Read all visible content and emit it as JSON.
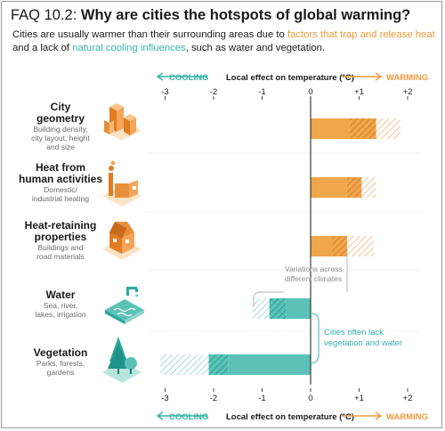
{
  "header": {
    "faq_label": "FAQ 10.2:",
    "question": "Why are cities the hotspots of global warming?",
    "line1_start": "Cities are usually warmer than their surrounding areas due to ",
    "line1_highlight": "factors that trap and release heat",
    "line2_start": "and a lack of ",
    "line2_highlight": "natural cooling influences",
    "line2_end": ", such as water and vegetation."
  },
  "colors": {
    "warming_solid": "#f0a64a",
    "warming_hatch": "#e08a2c",
    "cooling_solid": "#5cc2b8",
    "cooling_hatch": "#2aa89c",
    "axis_line": "#1a1a1a",
    "guide_line": "#b8b8b8"
  },
  "chart_data": {
    "type": "bar",
    "orientation": "horizontal",
    "xlabel": "Local effect on temperature (ºC)",
    "direction_left": "COOLING",
    "direction_right": "WARMING",
    "xlim": [
      -3,
      2
    ],
    "x_ticks": [
      "-3",
      "-2",
      "-1",
      "0",
      "+1",
      "+2"
    ],
    "categories": [
      {
        "name": "City geometry",
        "title_lines": [
          "City",
          "geometry"
        ],
        "desc_lines": [
          "Building density,",
          "city layout, height",
          "and size"
        ],
        "icon": "city-buildings-icon",
        "solid": [
          0,
          0.8
        ],
        "dark_hatch": [
          0.8,
          1.35
        ],
        "light_hatch": [
          1.35,
          1.85
        ]
      },
      {
        "name": "Heat from human activities",
        "title_lines": [
          "Heat from",
          "human activities"
        ],
        "desc_lines": [
          "Domestic/",
          "industrial heating"
        ],
        "icon": "factory-icon",
        "solid": [
          0,
          0.75
        ],
        "dark_hatch": [
          0.75,
          1.05
        ],
        "light_hatch": [
          1.05,
          1.35
        ]
      },
      {
        "name": "Heat-retaining properties",
        "title_lines": [
          "Heat-retaining",
          "properties"
        ],
        "desc_lines": [
          "Buildings and",
          "road materials"
        ],
        "icon": "house-icon",
        "solid": [
          0,
          0.45
        ],
        "dark_hatch": [
          0.45,
          0.75
        ],
        "light_hatch": [
          0.75,
          1.3
        ]
      },
      {
        "name": "Water",
        "title_lines": [
          "Water"
        ],
        "desc_lines": [
          "Sea, river,",
          "lakes, irrigation"
        ],
        "icon": "water-tap-icon",
        "solid": [
          -0.5,
          0
        ],
        "dark_hatch": [
          -0.85,
          -0.5
        ],
        "light_hatch": [
          -1.2,
          -0.85
        ]
      },
      {
        "name": "Vegetation",
        "title_lines": [
          "Vegetation"
        ],
        "desc_lines": [
          "Parks, forests,",
          "gardens"
        ],
        "icon": "tree-icon",
        "solid": [
          -1.7,
          0
        ],
        "dark_hatch": [
          -2.1,
          -1.7
        ],
        "light_hatch": [
          -3.1,
          -2.1
        ]
      }
    ],
    "annotations": {
      "variations": [
        "Variations across",
        "different climates"
      ],
      "lack": [
        "Cities often lack",
        "vegetation and water"
      ]
    }
  }
}
